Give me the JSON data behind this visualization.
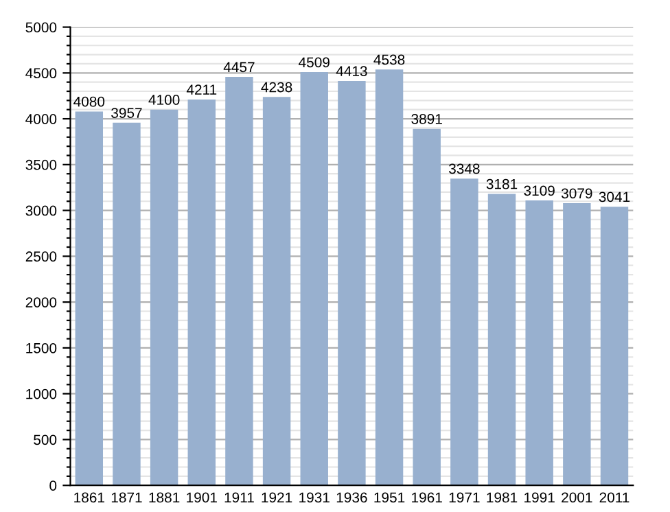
{
  "chart_data": {
    "type": "bar",
    "categories": [
      "1861",
      "1871",
      "1881",
      "1901",
      "1911",
      "1921",
      "1931",
      "1936",
      "1951",
      "1961",
      "1971",
      "1981",
      "1991",
      "2001",
      "2011"
    ],
    "values": [
      4080,
      3957,
      4100,
      4211,
      4457,
      4238,
      4509,
      4413,
      4538,
      3891,
      3348,
      3181,
      3109,
      3079,
      3041
    ],
    "color": "#98b0cf",
    "data_labels": true,
    "ylim": [
      0,
      5000
    ],
    "yticks": [
      0,
      {
        "value": 100,
        "label": null
      },
      {
        "value": 200,
        "label": null
      },
      {
        "value": 300,
        "label": null
      },
      {
        "value": 400,
        "label": null
      },
      500,
      {
        "value": 600,
        "label": null
      },
      {
        "value": 700,
        "label": null
      },
      {
        "value": 800,
        "label": null
      },
      {
        "value": 900,
        "label": null
      },
      1000,
      {
        "value": 1100,
        "label": null
      },
      {
        "value": 1200,
        "label": null
      },
      {
        "value": 1300,
        "label": null
      },
      {
        "value": 1400,
        "label": null
      },
      1500,
      {
        "value": 1600,
        "label": null
      },
      {
        "value": 1700,
        "label": null
      },
      {
        "value": 1800,
        "label": null
      },
      {
        "value": 1900,
        "label": null
      },
      2000,
      {
        "value": 2100,
        "label": null
      },
      {
        "value": 2200,
        "label": null
      },
      {
        "value": 2300,
        "label": null
      },
      {
        "value": 2400,
        "label": null
      },
      2500,
      {
        "value": 2600,
        "label": null
      },
      {
        "value": 2700,
        "label": null
      },
      {
        "value": 2800,
        "label": null
      },
      {
        "value": 2900,
        "label": null
      },
      3000,
      {
        "value": 3100,
        "label": null
      },
      {
        "value": 3200,
        "label": null
      },
      {
        "value": 3300,
        "label": null
      },
      {
        "value": 3400,
        "label": null
      },
      3500,
      {
        "value": 3600,
        "label": null
      },
      {
        "value": 3700,
        "label": null
      },
      {
        "value": 3800,
        "label": null
      },
      {
        "value": 3900,
        "label": null
      },
      4000,
      {
        "value": 4100,
        "label": null
      },
      {
        "value": 4200,
        "label": null
      },
      {
        "value": 4300,
        "label": null
      },
      {
        "value": 4400,
        "label": null
      },
      4500,
      {
        "value": 4600,
        "label": null
      },
      {
        "value": 4700,
        "label": null
      },
      {
        "value": 4800,
        "label": null
      },
      {
        "value": 4900,
        "label": null
      },
      5000
    ],
    "grid": "y"
  }
}
